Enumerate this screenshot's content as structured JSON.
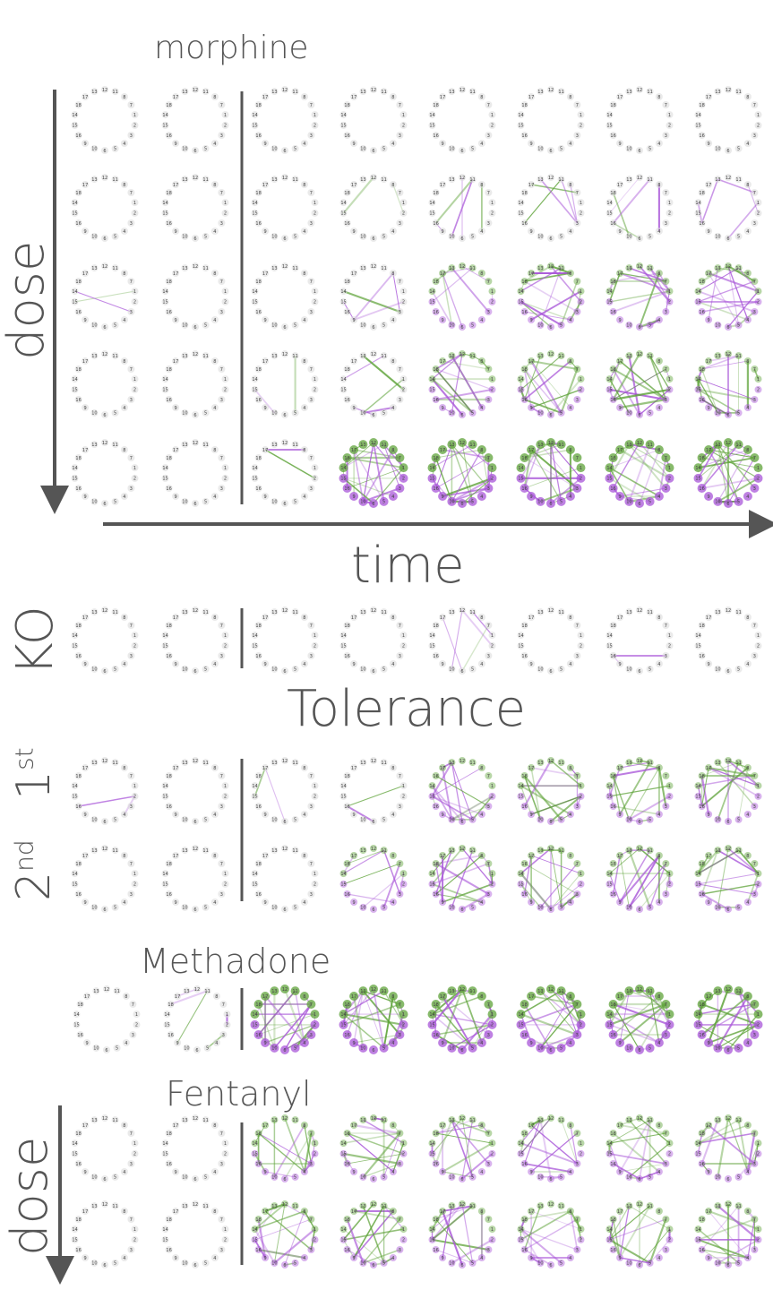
{
  "labels": {
    "morphine": "morphine",
    "dose_top": "dose",
    "time": "time",
    "ko": "KO",
    "tolerance": "Tolerance",
    "first": "1",
    "first_sup": "st",
    "second": "2",
    "second_sup": "nd",
    "methadone": "Methadone",
    "fentanyl": "Fentanyl",
    "dose_bottom": "dose"
  },
  "node_labels": [
    "1",
    "2",
    "3",
    "4",
    "5",
    "6",
    "7",
    "8",
    "9",
    "10",
    "11",
    "12",
    "13",
    "14",
    "15",
    "16",
    "17",
    "18"
  ],
  "colors": {
    "positive": "#5fa33a",
    "negative": "#a855d8",
    "node": "#d9d9d9",
    "axis": "#555555"
  },
  "panels": {
    "morphine": [
      [
        0,
        0,
        0,
        0,
        0,
        0,
        0,
        0
      ],
      [
        0,
        0,
        0,
        1,
        2,
        2,
        2,
        2
      ],
      [
        1,
        0,
        0,
        2,
        3,
        4,
        4,
        4
      ],
      [
        0,
        0,
        1,
        2,
        4,
        4,
        4,
        4
      ],
      [
        0,
        0,
        1,
        5,
        5,
        5,
        5,
        5
      ]
    ],
    "ko": [
      [
        0,
        0,
        0,
        0,
        2,
        0,
        1,
        0
      ]
    ],
    "tolerance": [
      [
        1,
        0,
        1,
        1,
        4,
        4,
        4,
        4
      ],
      [
        0,
        0,
        0,
        3,
        4,
        4,
        4,
        4
      ]
    ],
    "methadone": [
      [
        0,
        2,
        5,
        5,
        5,
        5,
        5,
        5
      ]
    ],
    "fentanyl": [
      [
        0,
        0,
        4,
        4,
        4,
        4,
        4,
        4
      ],
      [
        0,
        0,
        4,
        4,
        4,
        4,
        4,
        4
      ]
    ]
  }
}
